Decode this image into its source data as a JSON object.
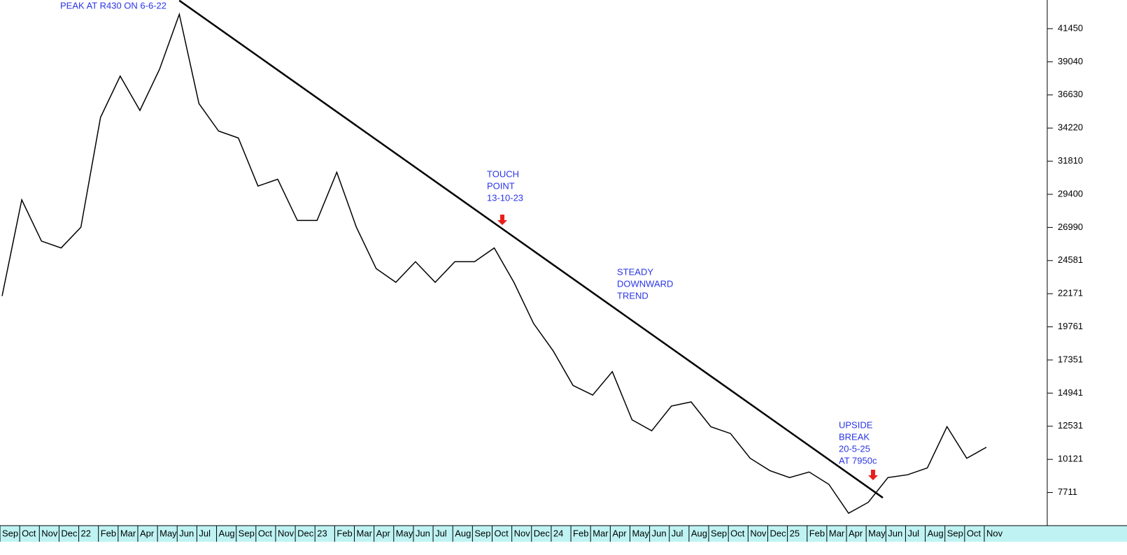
{
  "chart_data": {
    "type": "line",
    "categories": [
      "Sep",
      "Oct",
      "Nov",
      "Dec",
      "22",
      "Feb",
      "Mar",
      "Apr",
      "May",
      "Jun",
      "Jul",
      "Aug",
      "Sep",
      "Oct",
      "Nov",
      "Dec",
      "23",
      "Feb",
      "Mar",
      "Apr",
      "May",
      "Jun",
      "Jul",
      "Aug",
      "Sep",
      "Oct",
      "Nov",
      "Dec",
      "24",
      "Feb",
      "Mar",
      "Apr",
      "May",
      "Jun",
      "Jul",
      "Aug",
      "Sep",
      "Oct",
      "Nov",
      "Dec",
      "25",
      "Feb",
      "Mar",
      "Apr",
      "May",
      "Jun",
      "Jul",
      "Aug",
      "Sep",
      "Oct",
      "Nov"
    ],
    "series": [
      {
        "color": "#000000",
        "values": [
          22000,
          29000,
          26000,
          25500,
          27000,
          35000,
          38000,
          35500,
          38500,
          42500,
          36000,
          34000,
          33500,
          30000,
          30500,
          27500,
          27500,
          31000,
          27000,
          24000,
          23000,
          24500,
          23000,
          24500,
          24500,
          25500,
          23000,
          20000,
          18000,
          15500,
          14800,
          16500,
          13000,
          12200,
          14000,
          14300,
          12500,
          12000,
          10200,
          9300,
          8800,
          9200,
          8300,
          6200,
          7000,
          8800,
          9000,
          9500,
          12500,
          10200,
          11000
        ]
      }
    ],
    "trend_line": {
      "color": "#000000",
      "start": {
        "category_index": 9,
        "value": 43500
      },
      "end": {
        "category_index": 44.74,
        "value": 7330
      }
    },
    "ylim": [
      5300,
      43535
    ],
    "yticks": [
      41450,
      39040,
      36630,
      34220,
      31810,
      29400,
      26990,
      24581,
      22171,
      19761,
      17351,
      14941,
      12531,
      10121,
      7711
    ],
    "annotations": [
      {
        "lines": [
          "PEAK AT R430 ON 6-6-22"
        ]
      },
      {
        "lines": [
          "TOUCH",
          "POINT",
          "13-10-23"
        ]
      },
      {
        "lines": [
          "STEADY",
          "DOWNWARD",
          "TREND"
        ]
      },
      {
        "lines": [
          "UPSIDE",
          "BREAK",
          "20-5-25",
          "AT 7950c"
        ]
      }
    ]
  }
}
